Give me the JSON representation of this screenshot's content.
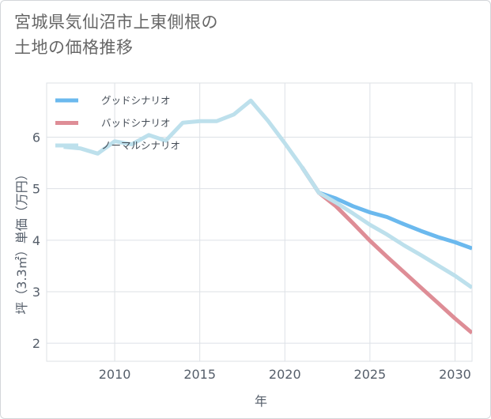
{
  "title": "宮城県気仙沼市上東側根の\n土地の価格推移",
  "chart_data": {
    "type": "line",
    "xlabel": "年",
    "ylabel": "坪（3.3㎡）単価（万円）",
    "xlim": [
      2006,
      2031
    ],
    "ylim": [
      1.65,
      7.05
    ],
    "xticks": [
      2010,
      2015,
      2020,
      2025,
      2030
    ],
    "yticks": [
      2,
      3,
      4,
      5,
      6
    ],
    "grid": true,
    "legend_position": "top-left",
    "series": [
      {
        "name": "グッドシナリオ",
        "color": "#6bb9ee",
        "x": [
          2021,
          2022,
          2023,
          2024,
          2025,
          2026,
          2027,
          2028,
          2029,
          2030,
          2031
        ],
        "y": [
          5.42,
          4.92,
          4.81,
          4.66,
          4.54,
          4.45,
          4.31,
          4.18,
          4.06,
          3.96,
          3.84
        ]
      },
      {
        "name": "バッドシナリオ",
        "color": "#de8d96",
        "x": [
          2021,
          2022,
          2023,
          2024,
          2025,
          2026,
          2027,
          2028,
          2029,
          2030,
          2031
        ],
        "y": [
          5.42,
          4.92,
          4.66,
          4.33,
          3.99,
          3.68,
          3.38,
          3.08,
          2.78,
          2.48,
          2.2
        ]
      },
      {
        "name": "ノーマルシナリオ",
        "color": "#bde0ec",
        "x": [
          2007,
          2008,
          2009,
          2010,
          2011,
          2012,
          2013,
          2014,
          2015,
          2016,
          2017,
          2018,
          2019,
          2020,
          2021,
          2022,
          2023,
          2024,
          2025,
          2026,
          2027,
          2028,
          2029,
          2030,
          2031
        ],
        "y": [
          5.81,
          5.78,
          5.68,
          5.92,
          5.86,
          6.04,
          5.93,
          6.28,
          6.31,
          6.31,
          6.44,
          6.71,
          6.32,
          5.88,
          5.42,
          4.92,
          4.73,
          4.52,
          4.3,
          4.11,
          3.9,
          3.71,
          3.51,
          3.31,
          3.08
        ]
      }
    ]
  }
}
